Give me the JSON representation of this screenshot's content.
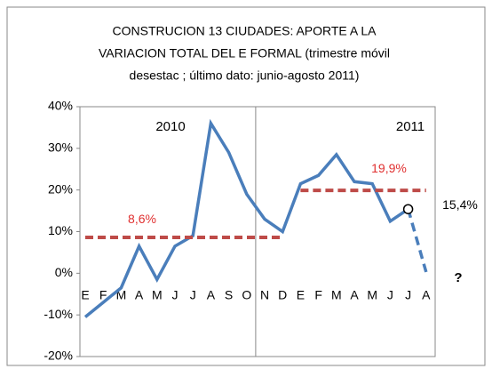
{
  "chart_data": {
    "type": "line",
    "title_lines": [
      "CONSTRUCION 13 CIUDADES: APORTE A LA",
      "VARIACION TOTAL DEL E FORMAL (trimestre móvil",
      "desestac ; último dato: junio-agosto 2011)"
    ],
    "categories": [
      "E",
      "F",
      "M",
      "A",
      "M",
      "J",
      "J",
      "A",
      "S",
      "O",
      "N",
      "D",
      "E",
      "F",
      "M",
      "A",
      "M",
      "J",
      "J",
      "A"
    ],
    "series": [
      {
        "color": "#4a7ebb",
        "style": "solid",
        "values": [
          -10.5,
          -7,
          -3.5,
          6.5,
          -1.5,
          6.5,
          9,
          36,
          29,
          19,
          13,
          10,
          21.5,
          23.5,
          28.5,
          22,
          21.5,
          12.5,
          15.4,
          null
        ],
        "value_labels": [
          null,
          null,
          null,
          null,
          null,
          null,
          null,
          null,
          null,
          null,
          null,
          null,
          null,
          null,
          null,
          null,
          null,
          null,
          "15,4%",
          null
        ]
      },
      {
        "color": "#4a7ebb",
        "style": "dashed",
        "values": [
          null,
          null,
          null,
          null,
          null,
          null,
          null,
          null,
          null,
          null,
          null,
          null,
          null,
          null,
          null,
          null,
          null,
          null,
          15.4,
          0.3
        ]
      },
      {
        "color": "#be4b48",
        "style": "dashed",
        "label_color": "#e03030",
        "values": [
          8.6,
          8.6,
          8.6,
          8.6,
          8.6,
          8.6,
          8.6,
          8.6,
          8.6,
          8.6,
          8.6,
          8.6,
          null,
          null,
          null,
          null,
          null,
          null,
          null,
          null
        ],
        "value_label": "8,6%"
      },
      {
        "color": "#be4b48",
        "style": "dashed",
        "label_color": "#e03030",
        "values": [
          null,
          null,
          null,
          null,
          null,
          null,
          null,
          null,
          null,
          null,
          null,
          null,
          19.9,
          19.9,
          19.9,
          19.9,
          19.9,
          19.9,
          19.9,
          19.9
        ],
        "value_label": "19,9%"
      }
    ],
    "annotations": [
      "2010",
      "2011",
      "?"
    ],
    "ylim": [
      -20,
      40
    ],
    "yticks": [
      {
        "value": -20,
        "label": "-20%"
      },
      {
        "value": -10,
        "label": "-10%"
      },
      {
        "value": 0,
        "label": "0%"
      },
      {
        "value": 10,
        "label": "10%"
      },
      {
        "value": 20,
        "label": "20%"
      },
      {
        "value": 30,
        "label": "30%"
      },
      {
        "value": 40,
        "label": "40%"
      }
    ]
  }
}
